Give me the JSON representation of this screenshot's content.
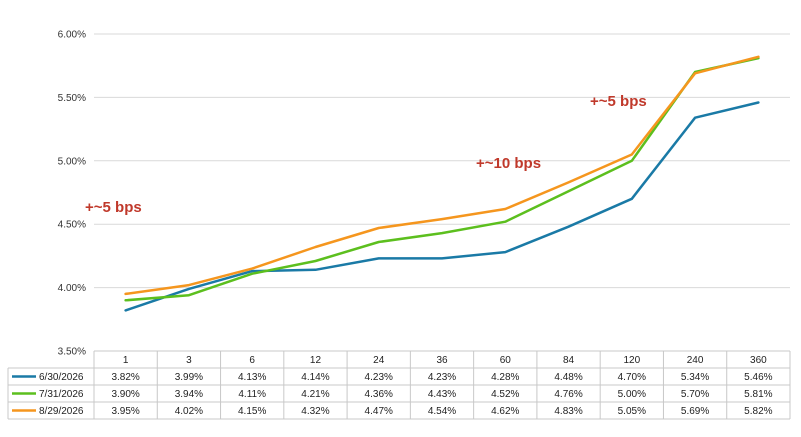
{
  "chart_data": {
    "type": "line",
    "categories": [
      "1",
      "3",
      "6",
      "12",
      "24",
      "36",
      "60",
      "84",
      "120",
      "240",
      "360"
    ],
    "ylim": [
      3.5,
      6.0
    ],
    "y_ticks": [
      "3.50%",
      "4.00%",
      "4.50%",
      "5.00%",
      "5.50%",
      "6.00%"
    ],
    "y_tick_values": [
      3.5,
      4.0,
      4.5,
      5.0,
      5.5,
      6.0
    ],
    "grid": true,
    "legend": "table-below",
    "series": [
      {
        "name": "6/30/2026",
        "color": "#1a7aa6",
        "values": [
          3.82,
          3.99,
          4.13,
          4.14,
          4.23,
          4.23,
          4.28,
          4.48,
          4.7,
          5.34,
          5.46
        ],
        "labels": [
          "3.82%",
          "3.99%",
          "4.13%",
          "4.14%",
          "4.23%",
          "4.23%",
          "4.28%",
          "4.48%",
          "4.70%",
          "5.34%",
          "5.46%"
        ]
      },
      {
        "name": "7/31/2026",
        "color": "#5cbf1e",
        "values": [
          3.9,
          3.94,
          4.11,
          4.21,
          4.36,
          4.43,
          4.52,
          4.76,
          5.0,
          5.7,
          5.81
        ],
        "labels": [
          "3.90%",
          "3.94%",
          "4.11%",
          "4.21%",
          "4.36%",
          "4.43%",
          "4.52%",
          "4.76%",
          "5.00%",
          "5.70%",
          "5.81%"
        ]
      },
      {
        "name": "8/29/2026",
        "color": "#f5961e",
        "values": [
          3.95,
          4.02,
          4.15,
          4.32,
          4.47,
          4.54,
          4.62,
          4.83,
          5.05,
          5.69,
          5.82
        ],
        "labels": [
          "3.95%",
          "4.02%",
          "4.15%",
          "4.32%",
          "4.47%",
          "4.54%",
          "4.62%",
          "4.83%",
          "5.05%",
          "5.69%",
          "5.82%"
        ]
      }
    ],
    "annotations": [
      {
        "text": "+~5 bps",
        "color": "#c0392b"
      },
      {
        "text": "+~10 bps",
        "color": "#c0392b"
      },
      {
        "text": "+~5 bps",
        "color": "#c0392b"
      }
    ]
  }
}
